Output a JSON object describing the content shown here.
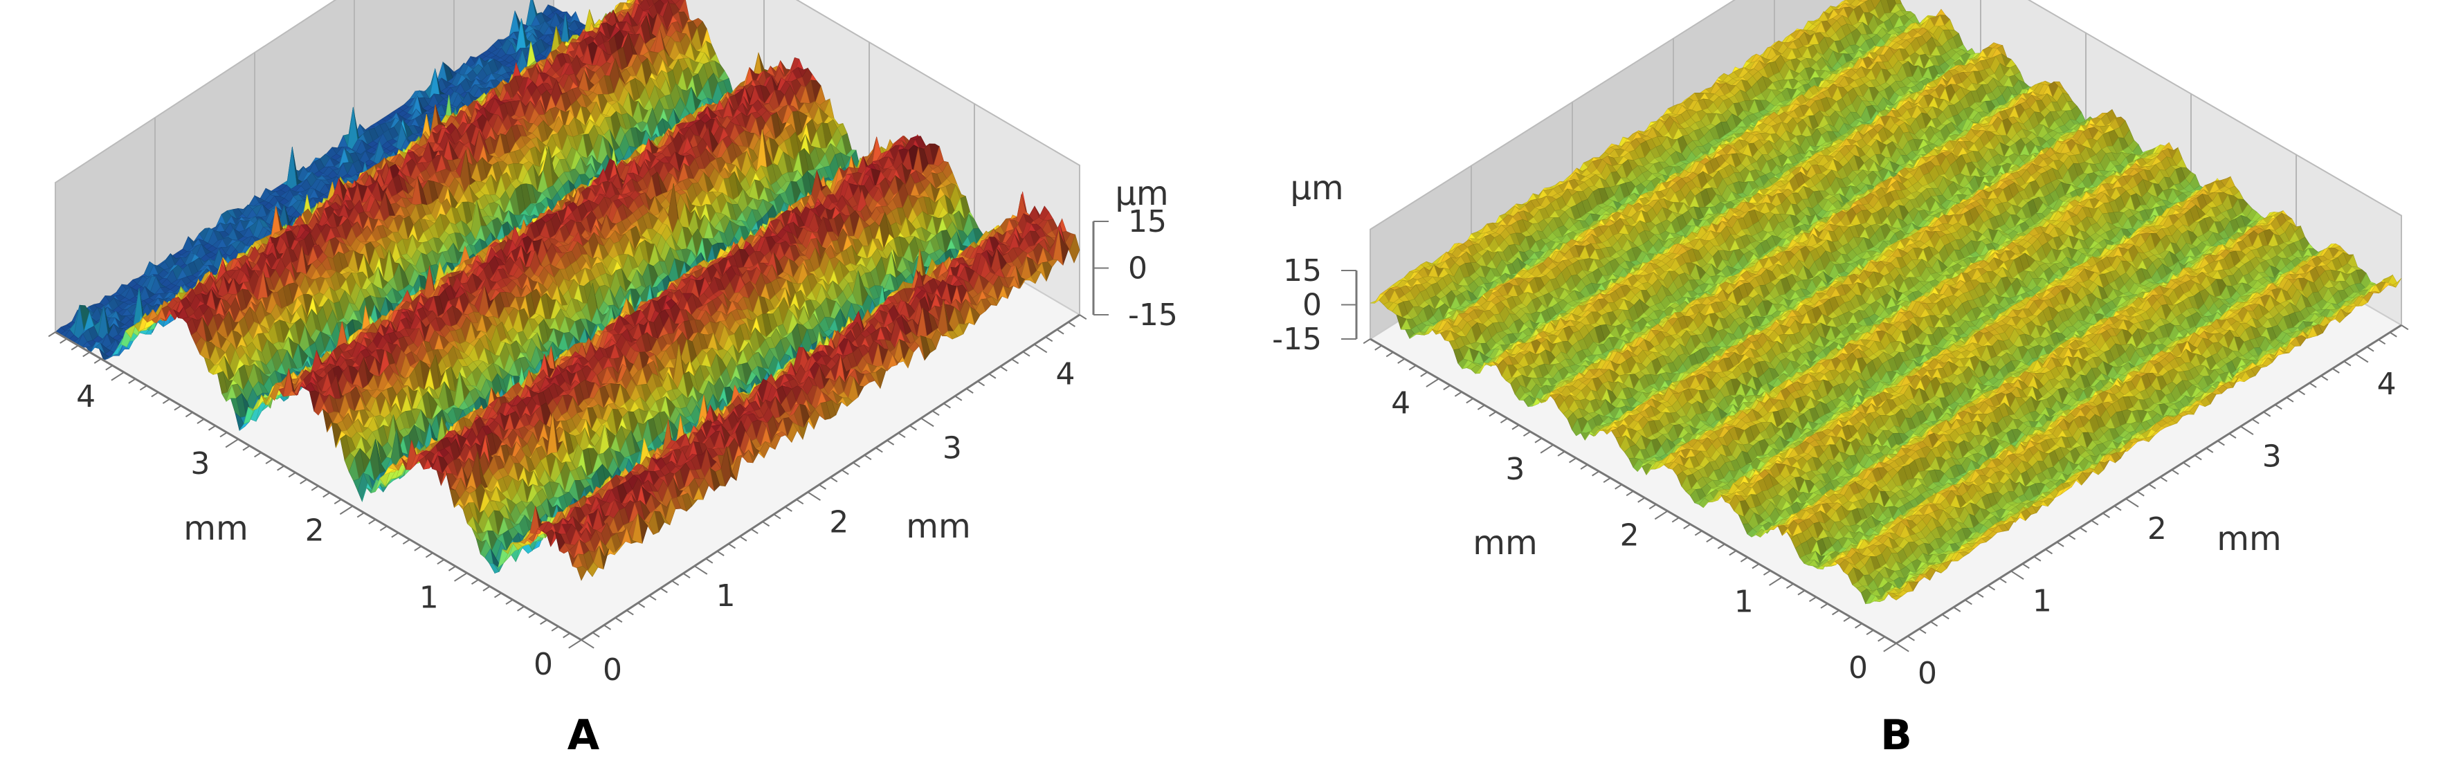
{
  "chart_data": [
    {
      "type": "surface3d",
      "panel_label": "A",
      "x_axis": {
        "label": "mm",
        "ticks": [
          0,
          1,
          2,
          3,
          4
        ],
        "range": [
          0,
          4.6
        ]
      },
      "y_axis": {
        "label": "mm",
        "ticks": [
          0,
          1,
          2,
          3,
          4
        ],
        "range": [
          0,
          4.4
        ]
      },
      "z_axis": {
        "label": "µm",
        "ticks": [
          15,
          0,
          -15
        ],
        "range": [
          -15,
          15
        ]
      },
      "ridges": {
        "count": 4,
        "positions_mm": [
          0.25,
          1.35,
          2.45,
          3.55
        ],
        "half_width_mm": 0.62,
        "peak_um": 12,
        "valley_um": -15
      },
      "colormap": [
        "#1b4fa0",
        "#1fa3c8",
        "#3fbf7a",
        "#9ed03a",
        "#e0d020",
        "#d98a20",
        "#c43a2a",
        "#8e1424"
      ]
    },
    {
      "type": "surface3d",
      "panel_label": "B",
      "x_axis": {
        "label": "mm",
        "ticks": [
          0,
          1,
          2,
          3,
          4
        ],
        "range": [
          0,
          4.6
        ]
      },
      "y_axis": {
        "label": "mm",
        "ticks": [
          0,
          1,
          2,
          3,
          4
        ],
        "range": [
          0,
          4.4
        ]
      },
      "z_axis": {
        "label": "µm",
        "ticks": [
          15,
          0,
          -15
        ],
        "range": [
          -15,
          15
        ]
      },
      "ridges": {
        "count": 9,
        "period_mm": 0.5,
        "peak_um": 5,
        "valley_um": -4
      },
      "colormap": [
        "#1fa3c8",
        "#3fbf7a",
        "#9ed03a",
        "#e0d020",
        "#d98a20",
        "#c43a2a"
      ]
    }
  ]
}
